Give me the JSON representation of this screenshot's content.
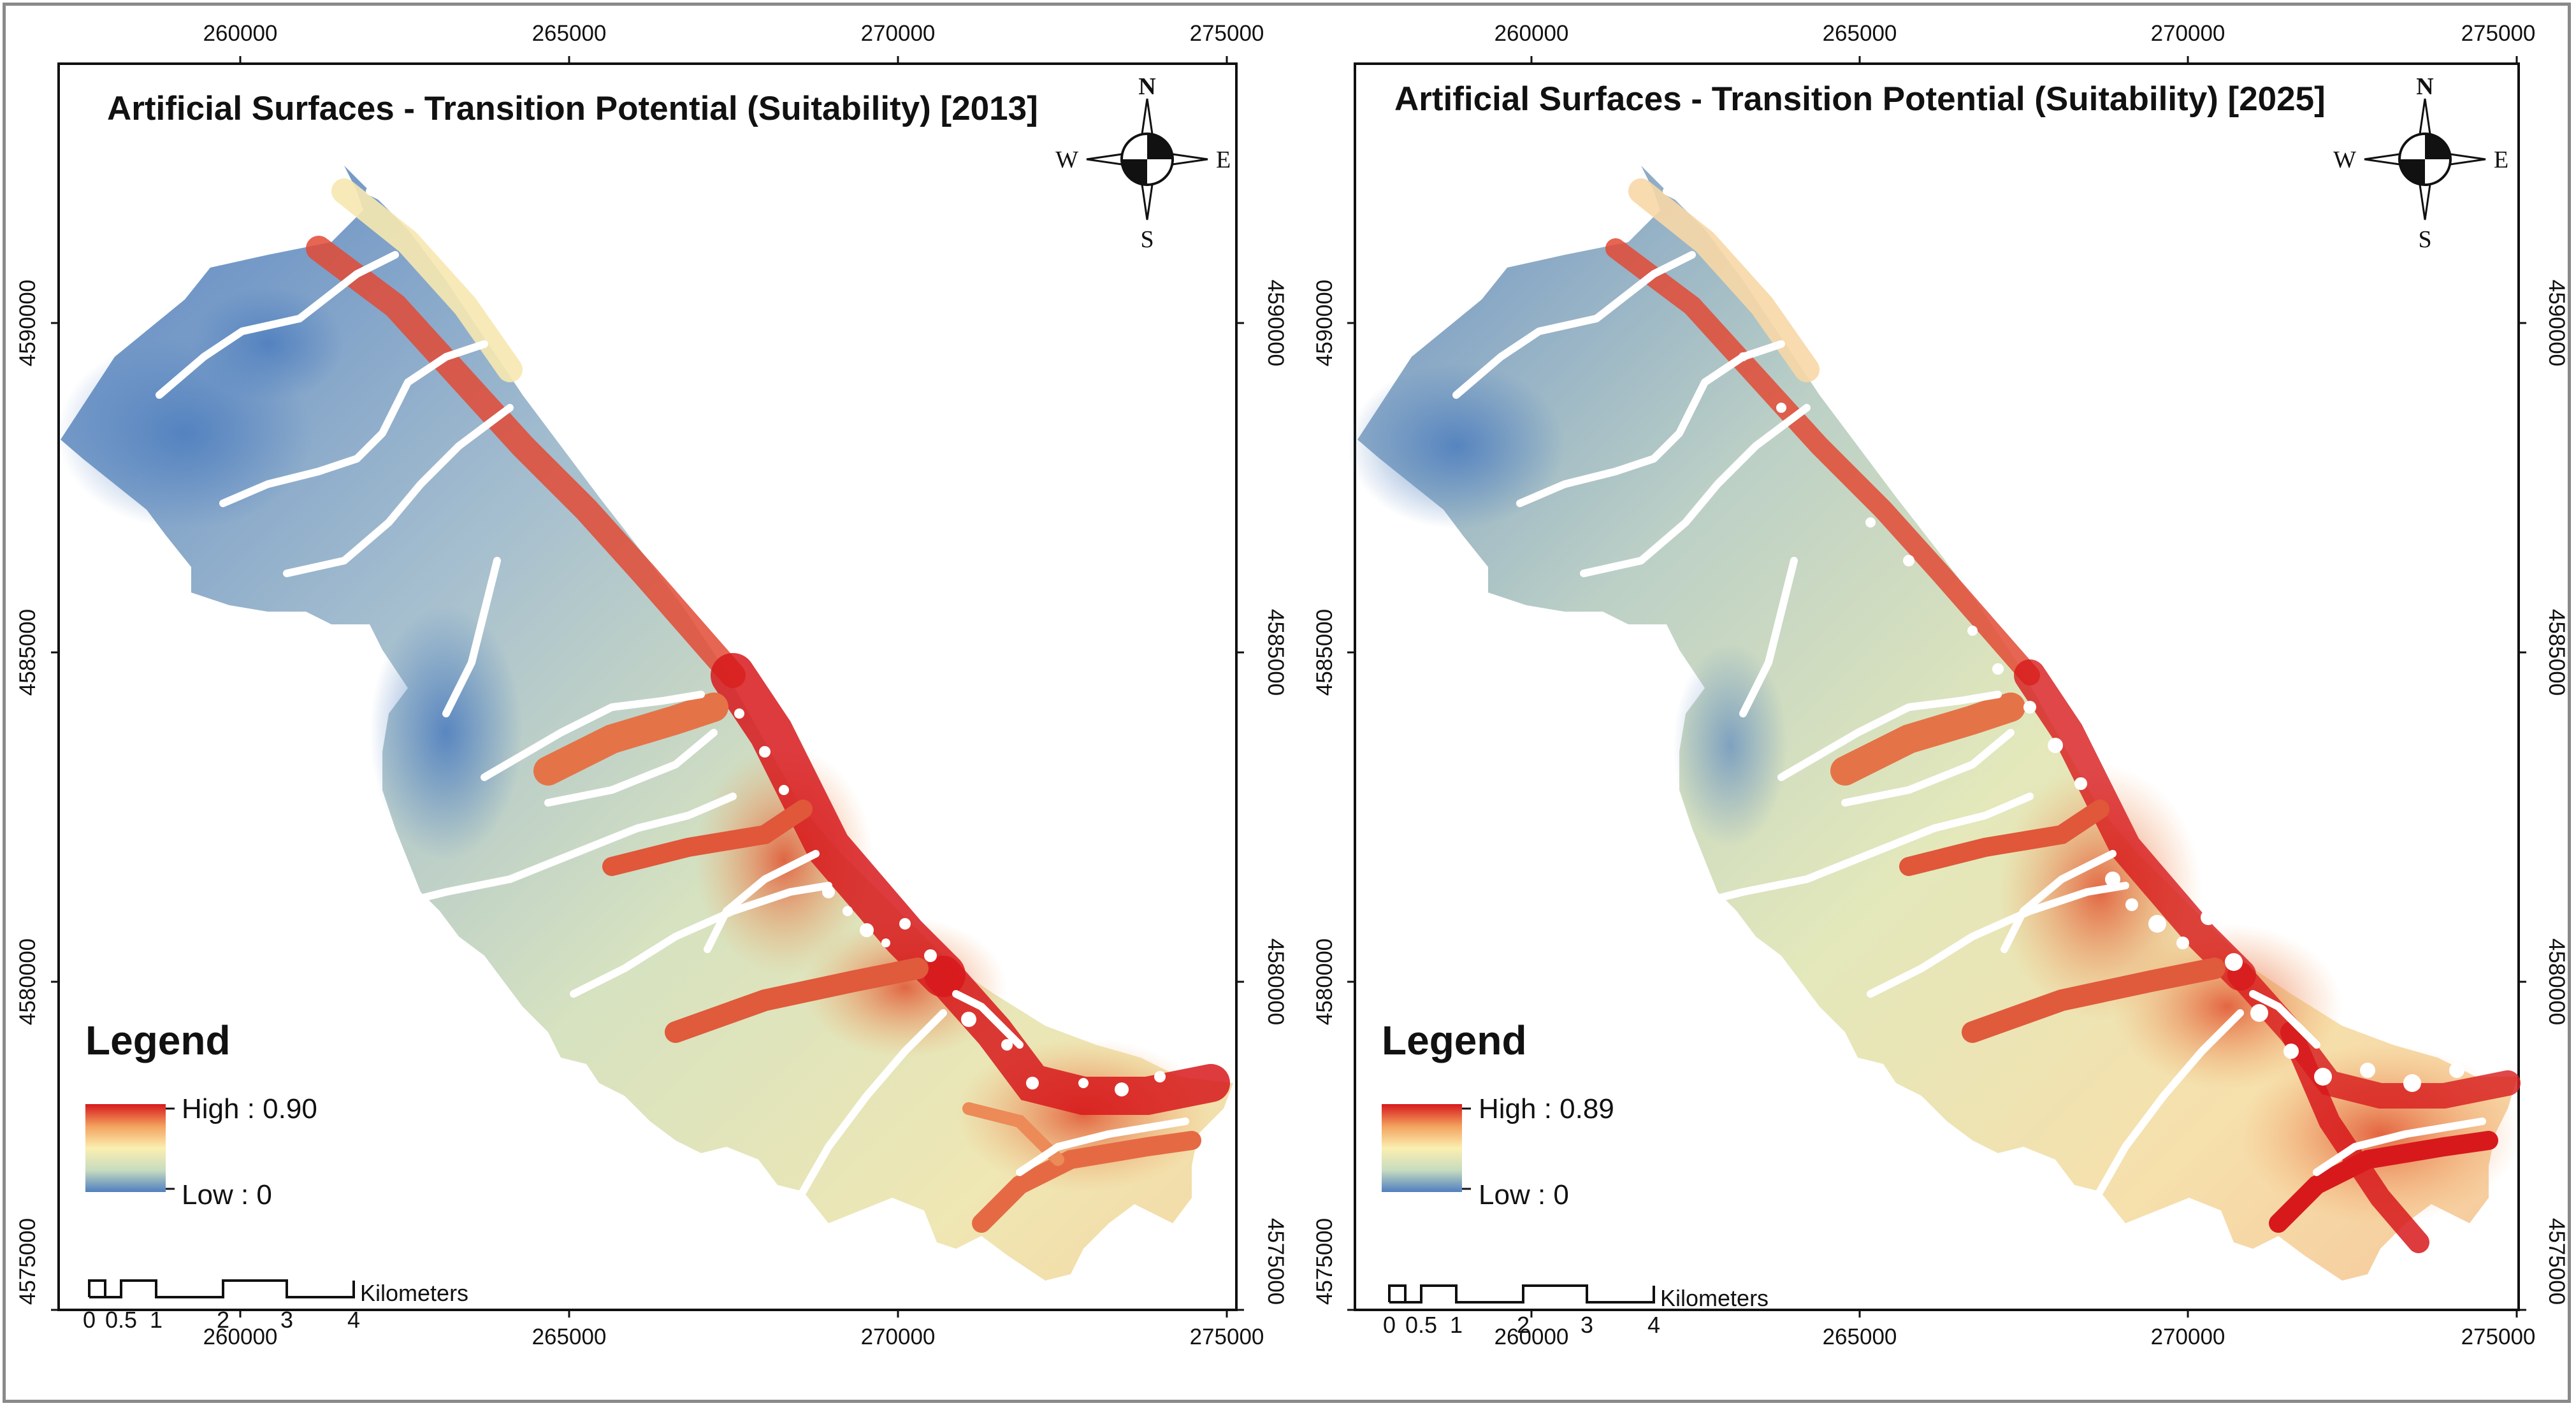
{
  "panels": [
    {
      "id": "2013",
      "title": "Artificial Surfaces - Transition Potential (Suitability) [2013]",
      "legend": {
        "title": "Legend",
        "high_label": "High : 0.90",
        "low_label": "Low : 0",
        "high_value": 0.9,
        "low_value": 0
      },
      "scale_bar": {
        "labels": [
          "0",
          "0.5",
          "1",
          "2",
          "3",
          "4"
        ],
        "unit": "Kilometers"
      },
      "compass": {
        "n": "N",
        "s": "S",
        "e": "E",
        "w": "W"
      },
      "x_ticks": [
        "260000",
        "265000",
        "270000",
        "275000"
      ],
      "y_ticks": [
        "4590000",
        "4585000",
        "4580000",
        "4575000"
      ]
    },
    {
      "id": "2025",
      "title": "Artificial Surfaces - Transition Potential (Suitability) [2025]",
      "legend": {
        "title": "Legend",
        "high_label": "High : 0.89",
        "low_label": "Low : 0",
        "high_value": 0.89,
        "low_value": 0
      },
      "scale_bar": {
        "labels": [
          "0",
          "0.5",
          "1",
          "2",
          "3",
          "4"
        ],
        "unit": "Kilometers"
      },
      "compass": {
        "n": "N",
        "s": "S",
        "e": "E",
        "w": "W"
      },
      "x_ticks": [
        "260000",
        "265000",
        "270000",
        "275000"
      ],
      "y_ticks": [
        "4590000",
        "4585000",
        "4580000",
        "4575000"
      ]
    }
  ],
  "color_ramp": [
    "#d7191c",
    "#f3a15e",
    "#fbefb0",
    "#c7dcbf",
    "#4f7fbf"
  ]
}
